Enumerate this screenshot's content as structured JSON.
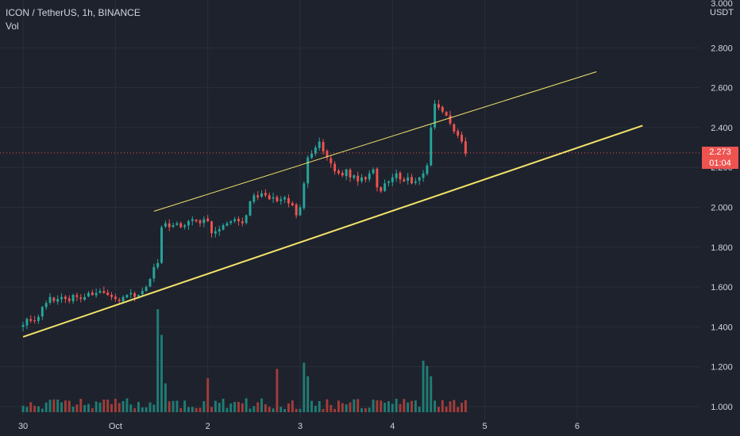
{
  "header": {
    "symbol_line": "ICON / TetherUS, 1h, BINANCE",
    "indicator": "Vol"
  },
  "price_axis": {
    "currency": "USDT",
    "top_partial_label": "3.000"
  },
  "last_price": {
    "value": "2.273",
    "countdown": "01:04"
  },
  "colors": {
    "background": "#1e222d",
    "up": "#26a69a",
    "down": "#ef5350",
    "up_volume": "#1f7d74",
    "down_volume": "#a33c39",
    "trendline": "#f3e36a",
    "axis_text": "#d1d4dc",
    "grid": "#2a2e39"
  },
  "chart_data": {
    "type": "candlestick",
    "timeframe": "1h",
    "y_axis": {
      "ticks": [
        1.0,
        1.2,
        1.4,
        1.6,
        1.8,
        2.0,
        2.2,
        2.4,
        2.6,
        2.8
      ],
      "tick_labels": [
        "1.000",
        "1.200",
        "1.400",
        "1.600",
        "1.800",
        "2.000",
        "2.200",
        "2.400",
        "2.600",
        "2.800"
      ],
      "range": [
        0.94,
        3.04
      ]
    },
    "x_axis": {
      "tick_labels": [
        "30",
        "Oct",
        "2",
        "3",
        "4",
        "5",
        "6"
      ],
      "tick_hours": [
        0,
        24,
        48,
        72,
        96,
        120,
        144
      ],
      "range_hours": [
        -6,
        176
      ]
    },
    "last_hour": 115,
    "candle_closes": [
      1.41,
      1.44,
      1.43,
      1.43,
      1.45,
      1.5,
      1.52,
      1.55,
      1.53,
      1.54,
      1.55,
      1.54,
      1.53,
      1.56,
      1.55,
      1.54,
      1.55,
      1.57,
      1.56,
      1.57,
      1.58,
      1.57,
      1.56,
      1.55,
      1.54,
      1.53,
      1.55,
      1.56,
      1.57,
      1.55,
      1.56,
      1.58,
      1.6,
      1.64,
      1.7,
      1.72,
      1.9,
      1.92,
      1.9,
      1.91,
      1.92,
      1.9,
      1.91,
      1.93,
      1.94,
      1.93,
      1.92,
      1.94,
      1.93,
      1.87,
      1.88,
      1.89,
      1.91,
      1.92,
      1.93,
      1.94,
      1.93,
      1.92,
      1.96,
      2.03,
      2.06,
      2.05,
      2.07,
      2.06,
      2.04,
      2.05,
      2.03,
      2.04,
      2.05,
      2.02,
      2.01,
      1.96,
      2.0,
      2.12,
      2.25,
      2.27,
      2.3,
      2.33,
      2.28,
      2.25,
      2.22,
      2.18,
      2.17,
      2.16,
      2.19,
      2.15,
      2.16,
      2.13,
      2.15,
      2.14,
      2.17,
      2.19,
      2.1,
      2.08,
      2.12,
      2.13,
      2.15,
      2.17,
      2.14,
      2.13,
      2.15,
      2.12,
      2.13,
      2.15,
      2.17,
      2.21,
      2.4,
      2.52,
      2.5,
      2.48,
      2.46,
      2.42,
      2.38,
      2.36,
      2.33,
      2.27
    ],
    "trendlines": [
      {
        "points": [
          [
            0,
            1.35
          ],
          [
            161,
            2.41
          ]
        ]
      },
      {
        "points": [
          [
            34,
            1.98
          ],
          [
            149,
            2.68
          ]
        ]
      }
    ],
    "volume_bars_shown": true
  }
}
